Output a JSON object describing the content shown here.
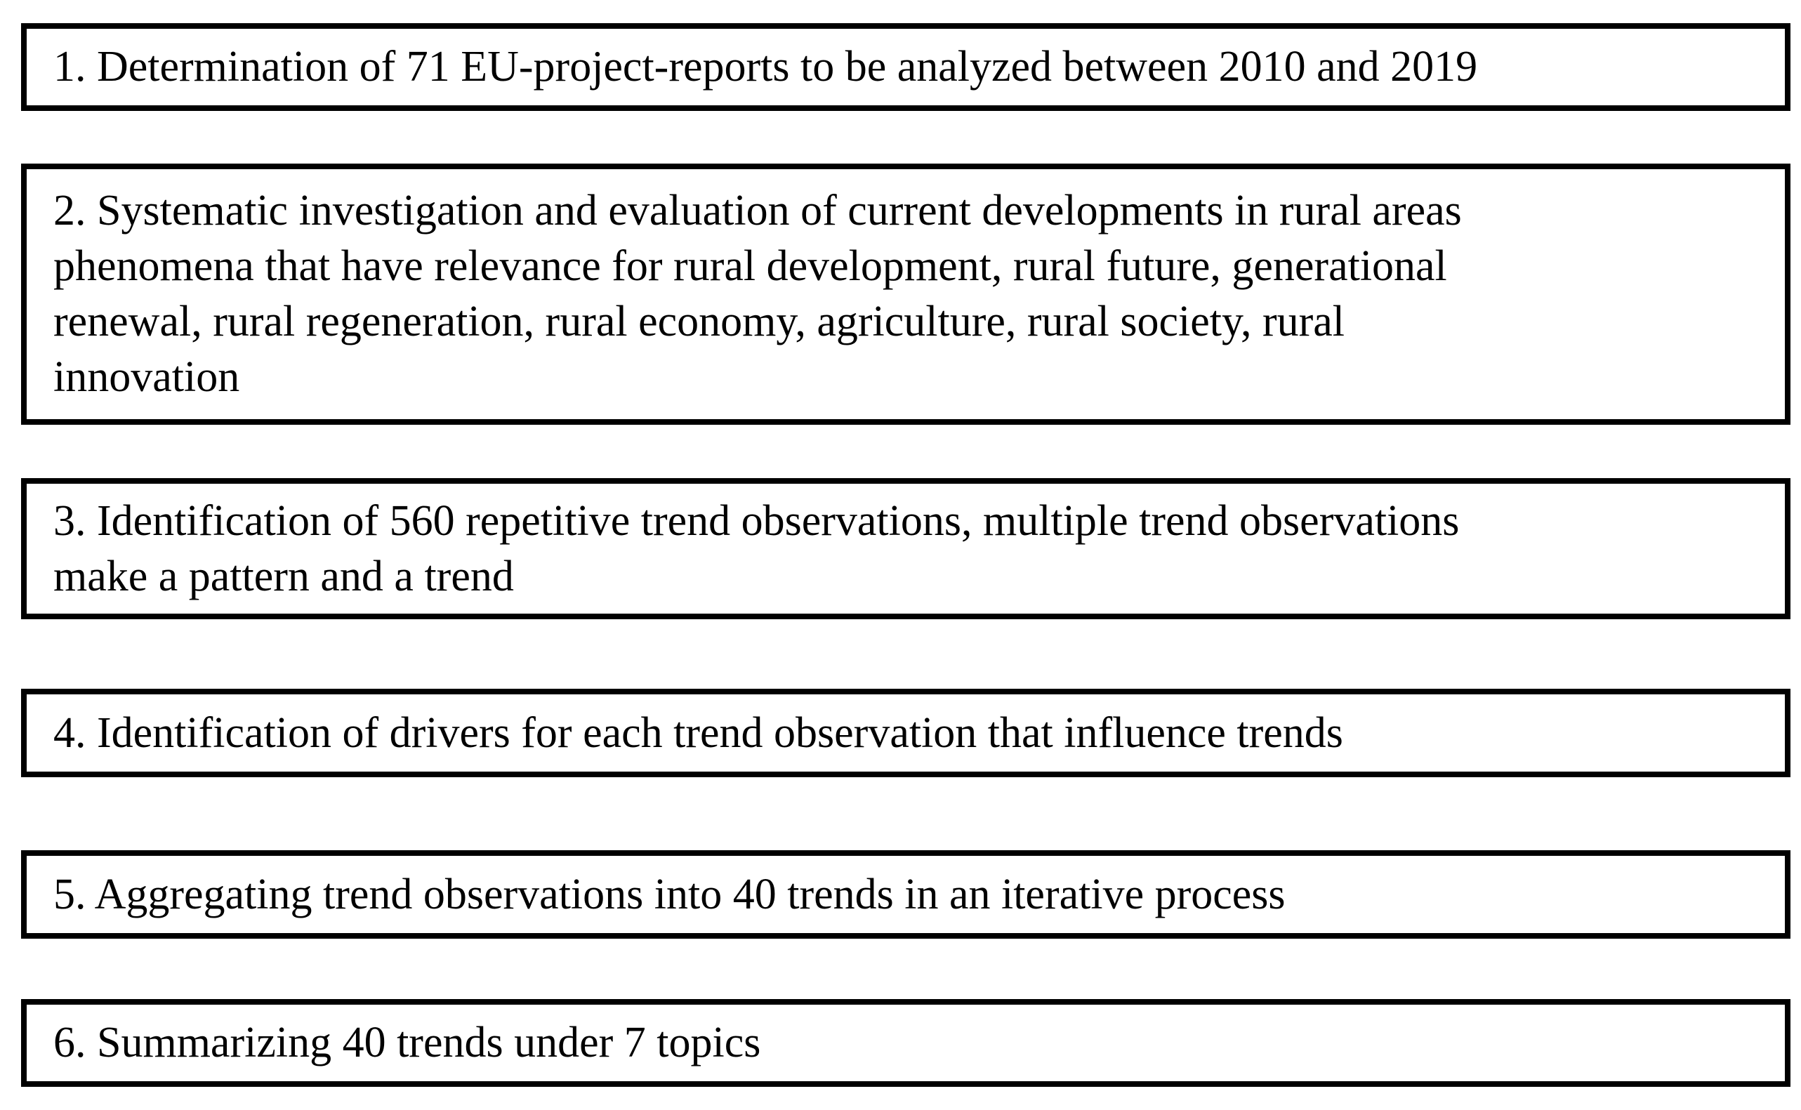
{
  "colors": {
    "background": "#ffffff",
    "box-border": "#000000",
    "text": "#000000"
  },
  "diagram": {
    "steps": [
      {
        "label": "1. Determination of 71 EU-project-reports to be analyzed between 2010 and 2019"
      },
      {
        "label": "2. Systematic investigation and evaluation of current developments in rural areas\nphenomena that have relevance for rural development, rural future, generational\nrenewal, rural regeneration, rural economy, agriculture, rural society, rural\ninnovation"
      },
      {
        "label": "3. Identification of 560 repetitive trend observations, multiple trend observations\nmake a pattern and a trend"
      },
      {
        "label": "4. Identification of drivers for each trend observation that influence trends"
      },
      {
        "label": "5. Aggregating trend observations into 40 trends in an iterative process"
      },
      {
        "label": "6. Summarizing 40 trends under 7 topics"
      }
    ]
  }
}
